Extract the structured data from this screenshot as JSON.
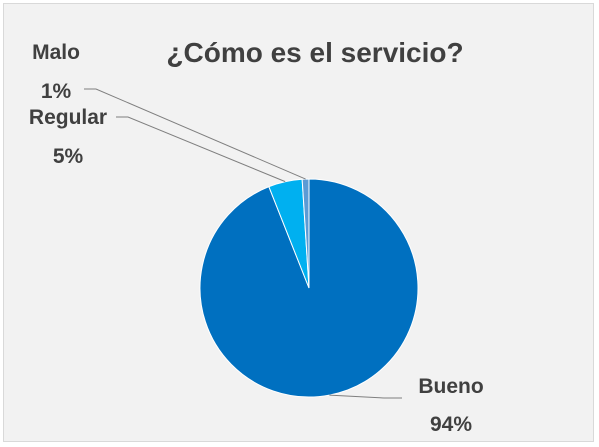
{
  "chart_data": {
    "type": "pie",
    "title": "¿Cómo es el servicio?",
    "slices": [
      {
        "category": "Bueno",
        "value": 94,
        "percent_label": "94%",
        "color": "#0070c0"
      },
      {
        "category": "Regular",
        "value": 5,
        "percent_label": "5%",
        "color": "#00b0f0"
      },
      {
        "category": "Malo",
        "value": 1,
        "percent_label": "1%",
        "color": "#5b9bd5"
      }
    ],
    "legend": "none",
    "data_labels": "outside with leader lines"
  },
  "colors": {
    "background": "#f2f2f2",
    "border": "#d9d9d9",
    "text": "#404040",
    "leader_line": "#7f7f7f"
  }
}
